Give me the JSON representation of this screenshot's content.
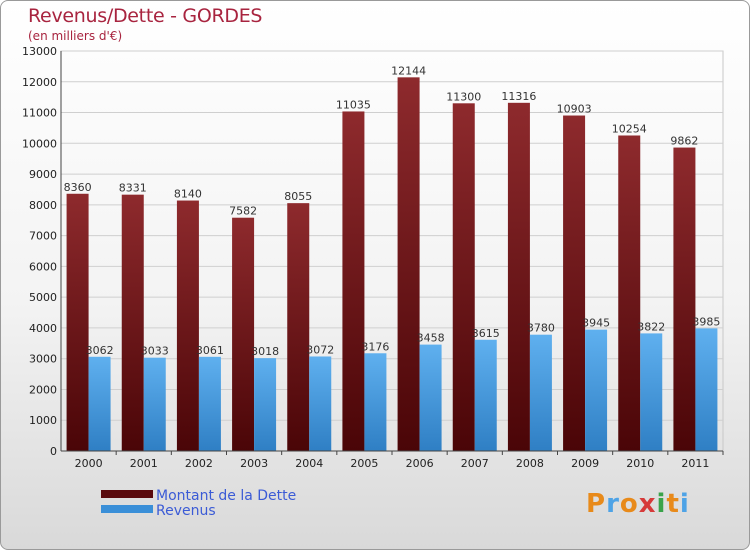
{
  "title": "Revenus/Dette - GORDES",
  "subtitle": "(en milliers d'€)",
  "logo": "Proxiti",
  "colors": {
    "dette": "#7a1a1d",
    "revenus": "#3a8fd8",
    "title": "#a8243f",
    "legend_text": "#3b5bd6"
  },
  "chart_data": {
    "type": "bar",
    "title": "Revenus/Dette - GORDES",
    "subtitle": "(en milliers d'€)",
    "categories": [
      "2000",
      "2001",
      "2002",
      "2003",
      "2004",
      "2005",
      "2006",
      "2007",
      "2008",
      "2009",
      "2010",
      "2011"
    ],
    "series": [
      {
        "name": "Montant de la Dette",
        "values": [
          8360,
          8331,
          8140,
          7582,
          8055,
          11035,
          12144,
          11300,
          11316,
          10903,
          10254,
          9862
        ]
      },
      {
        "name": "Revenus",
        "values": [
          3062,
          3033,
          3061,
          3018,
          3072,
          3176,
          3458,
          3615,
          3780,
          3945,
          3822,
          3985
        ]
      }
    ],
    "ylim": [
      0,
      13000
    ],
    "yticks": [
      0,
      1000,
      2000,
      3000,
      4000,
      5000,
      6000,
      7000,
      8000,
      9000,
      10000,
      11000,
      12000,
      13000
    ],
    "grid": true,
    "legend_position": "bottom-left"
  }
}
